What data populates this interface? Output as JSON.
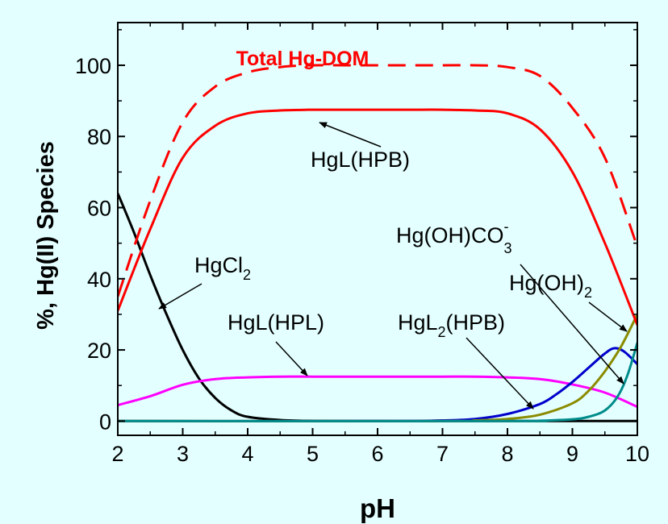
{
  "chart_data": {
    "type": "line",
    "title": "",
    "xlabel": "pH",
    "ylabel": "%, Hg(II) Species",
    "xlim": [
      2,
      10
    ],
    "ylim": [
      -4,
      112
    ],
    "xticks": [
      2,
      3,
      4,
      5,
      6,
      7,
      8,
      9,
      10
    ],
    "yticks": [
      0,
      20,
      40,
      60,
      80,
      100
    ],
    "grid": false,
    "background": "#e3ffff",
    "series": [
      {
        "key": "total",
        "name": "Total Hg-DOM",
        "color": "#ff0000",
        "dash": "dashed",
        "x": [
          2,
          2.5,
          3,
          3.5,
          4,
          4.5,
          5,
          5.5,
          6,
          6.5,
          7,
          7.5,
          8,
          8.5,
          9,
          9.5,
          10
        ],
        "y": [
          35,
          62,
          84,
          94,
          98,
          99.5,
          100,
          100,
          100,
          100,
          100,
          100,
          99.5,
          97,
          88,
          74,
          49
        ]
      },
      {
        "key": "hpb",
        "name": "HgL(HPB)",
        "color": "#ff0000",
        "dash": "solid",
        "x": [
          2,
          2.5,
          3,
          3.5,
          4,
          4.5,
          5,
          5.5,
          6,
          6.5,
          7,
          7.5,
          8,
          8.5,
          9,
          9.5,
          10
        ],
        "y": [
          31,
          54,
          74,
          83,
          86.5,
          87.3,
          87.5,
          87.5,
          87.5,
          87.5,
          87.5,
          87.3,
          86.5,
          82,
          70,
          50,
          27
        ]
      },
      {
        "key": "hgcl2",
        "name": "HgCl2",
        "color": "#000000",
        "dash": "solid",
        "x": [
          2,
          2.25,
          2.5,
          2.75,
          3,
          3.25,
          3.5,
          3.75,
          4,
          4.5,
          5,
          6,
          7,
          8,
          9,
          10
        ],
        "y": [
          64,
          53,
          41,
          30,
          20,
          12,
          6.5,
          3,
          1.2,
          0.3,
          0.05,
          0,
          0,
          0,
          0,
          0
        ]
      },
      {
        "key": "hpl",
        "name": "HgL(HPL)",
        "color": "#ff00ff",
        "dash": "solid",
        "x": [
          2,
          2.5,
          3,
          3.5,
          4,
          4.5,
          5,
          5.5,
          6,
          6.5,
          7,
          7.5,
          8,
          8.5,
          9,
          9.5,
          10
        ],
        "y": [
          4.5,
          7,
          10.2,
          11.8,
          12.3,
          12.5,
          12.5,
          12.5,
          12.5,
          12.5,
          12.5,
          12.5,
          12.3,
          11.8,
          10.3,
          8,
          4
        ]
      },
      {
        "key": "hgl2",
        "name": "HgL2(HPB)",
        "color": "#0000cc",
        "dash": "solid",
        "x": [
          2,
          6,
          7,
          7.5,
          8,
          8.5,
          8.75,
          9,
          9.25,
          9.5,
          9.65,
          9.8,
          10
        ],
        "y": [
          0,
          0,
          0.2,
          0.6,
          2,
          4.8,
          7.5,
          11,
          15,
          19,
          20.5,
          19.5,
          16
        ]
      },
      {
        "key": "ohco3",
        "name": "Hg(OH)CO3-",
        "color": "#8b8b00",
        "dash": "solid",
        "x": [
          2,
          7,
          7.5,
          8,
          8.5,
          9,
          9.25,
          9.5,
          9.75,
          10
        ],
        "y": [
          0,
          0,
          0.2,
          0.6,
          1.8,
          5,
          8.5,
          14,
          21,
          30
        ]
      },
      {
        "key": "oh2",
        "name": "Hg(OH)2",
        "color": "#008b8b",
        "dash": "solid",
        "x": [
          2,
          8,
          8.5,
          9,
          9.25,
          9.5,
          9.7,
          9.85,
          10
        ],
        "y": [
          0,
          0,
          0.1,
          0.5,
          1.2,
          3,
          7,
          13,
          22
        ]
      }
    ],
    "annotations": {
      "total": "Total Hg-DOM",
      "hpb": "HgL(HPB)",
      "hgcl2_main": "HgCl",
      "hgcl2_sub": "2",
      "hpl": "HgL(HPL)",
      "hgl2_main": "HgL",
      "hgl2_sub": "2",
      "hgl2_rest": "(HPB)",
      "ohco3_main": "Hg(OH)CO",
      "ohco3_sub": "3",
      "ohco3_sup": "-",
      "oh2_main": "Hg(OH)",
      "oh2_sub": "2"
    }
  }
}
